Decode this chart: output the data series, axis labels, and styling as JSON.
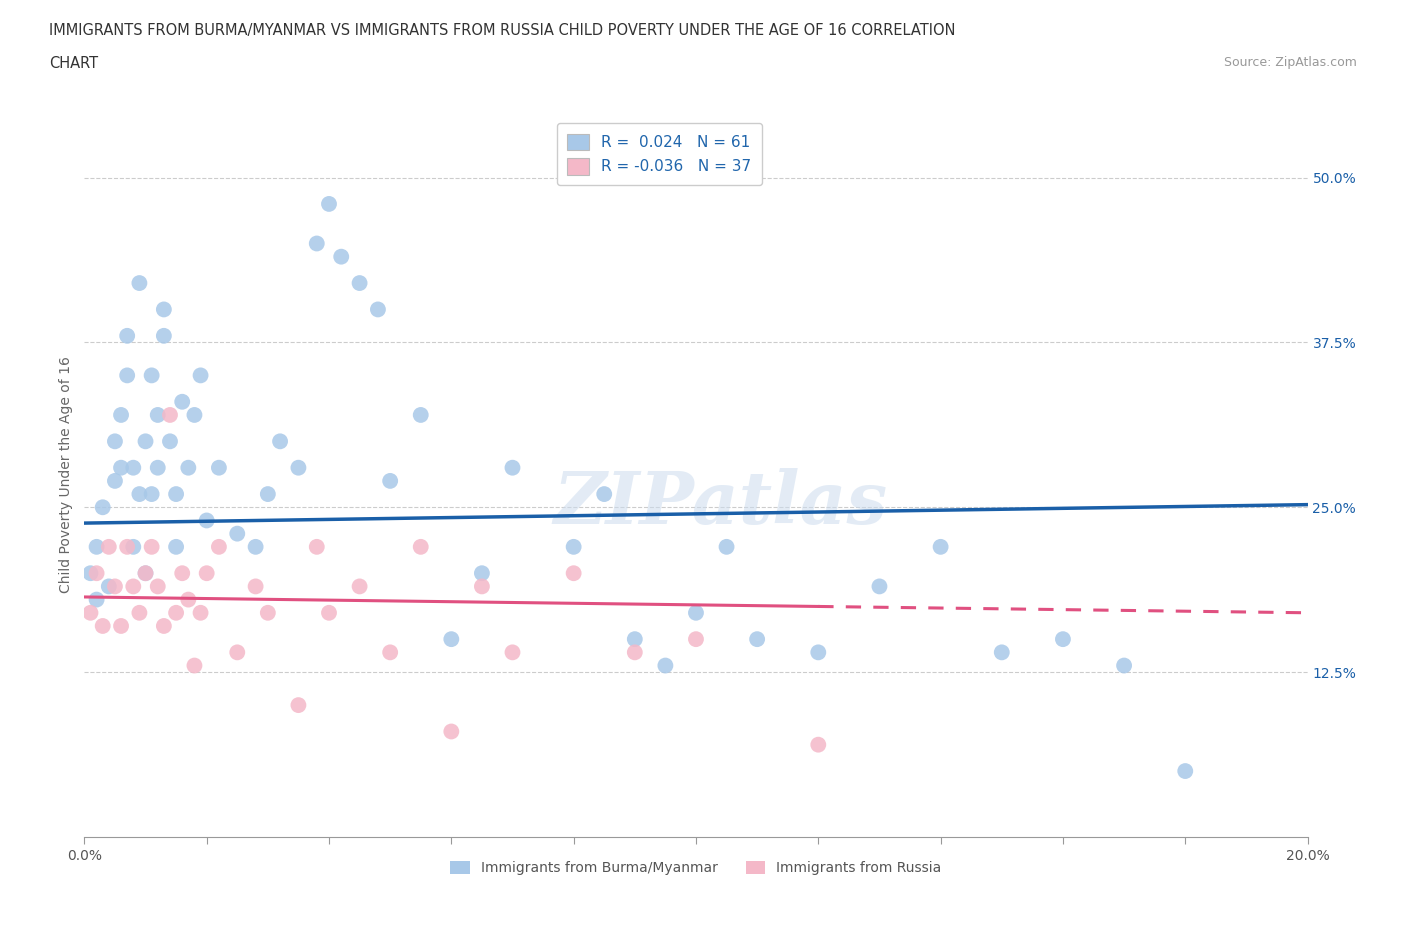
{
  "title_line1": "IMMIGRANTS FROM BURMA/MYANMAR VS IMMIGRANTS FROM RUSSIA CHILD POVERTY UNDER THE AGE OF 16 CORRELATION",
  "title_line2": "CHART",
  "source_text": "Source: ZipAtlas.com",
  "ylabel": "Child Poverty Under the Age of 16",
  "xlim": [
    0.0,
    0.2
  ],
  "ylim": [
    0.0,
    0.55
  ],
  "ytick_positions": [
    0.125,
    0.25,
    0.375,
    0.5
  ],
  "ytick_labels": [
    "12.5%",
    "25.0%",
    "37.5%",
    "50.0%"
  ],
  "blue_R": 0.024,
  "blue_N": 61,
  "pink_R": -0.036,
  "pink_N": 37,
  "blue_color": "#a8c8e8",
  "pink_color": "#f4b8c8",
  "blue_line_color": "#1a5fa8",
  "pink_line_color": "#e05080",
  "legend_label_blue": "Immigrants from Burma/Myanmar",
  "legend_label_pink": "Immigrants from Russia",
  "watermark": "ZIPatlas",
  "blue_x": [
    0.001,
    0.002,
    0.002,
    0.003,
    0.004,
    0.005,
    0.005,
    0.006,
    0.006,
    0.007,
    0.007,
    0.008,
    0.008,
    0.009,
    0.009,
    0.01,
    0.01,
    0.011,
    0.011,
    0.012,
    0.012,
    0.013,
    0.013,
    0.014,
    0.015,
    0.015,
    0.016,
    0.017,
    0.018,
    0.019,
    0.02,
    0.022,
    0.025,
    0.028,
    0.03,
    0.032,
    0.035,
    0.038,
    0.04,
    0.042,
    0.045,
    0.048,
    0.05,
    0.055,
    0.06,
    0.065,
    0.07,
    0.08,
    0.085,
    0.09,
    0.095,
    0.1,
    0.105,
    0.11,
    0.12,
    0.13,
    0.14,
    0.15,
    0.16,
    0.17,
    0.18
  ],
  "blue_y": [
    0.2,
    0.22,
    0.18,
    0.25,
    0.19,
    0.27,
    0.3,
    0.32,
    0.28,
    0.38,
    0.35,
    0.28,
    0.22,
    0.42,
    0.26,
    0.3,
    0.2,
    0.35,
    0.26,
    0.32,
    0.28,
    0.38,
    0.4,
    0.3,
    0.26,
    0.22,
    0.33,
    0.28,
    0.32,
    0.35,
    0.24,
    0.28,
    0.23,
    0.22,
    0.26,
    0.3,
    0.28,
    0.45,
    0.48,
    0.44,
    0.42,
    0.4,
    0.27,
    0.32,
    0.15,
    0.2,
    0.28,
    0.22,
    0.26,
    0.15,
    0.13,
    0.17,
    0.22,
    0.15,
    0.14,
    0.19,
    0.22,
    0.14,
    0.15,
    0.13,
    0.05
  ],
  "pink_x": [
    0.001,
    0.002,
    0.003,
    0.004,
    0.005,
    0.006,
    0.007,
    0.008,
    0.009,
    0.01,
    0.011,
    0.012,
    0.013,
    0.014,
    0.015,
    0.016,
    0.017,
    0.018,
    0.019,
    0.02,
    0.022,
    0.025,
    0.028,
    0.03,
    0.035,
    0.038,
    0.04,
    0.045,
    0.05,
    0.055,
    0.06,
    0.065,
    0.07,
    0.08,
    0.09,
    0.1,
    0.12
  ],
  "pink_y": [
    0.17,
    0.2,
    0.16,
    0.22,
    0.19,
    0.16,
    0.22,
    0.19,
    0.17,
    0.2,
    0.22,
    0.19,
    0.16,
    0.32,
    0.17,
    0.2,
    0.18,
    0.13,
    0.17,
    0.2,
    0.22,
    0.14,
    0.19,
    0.17,
    0.1,
    0.22,
    0.17,
    0.19,
    0.14,
    0.22,
    0.08,
    0.19,
    0.14,
    0.2,
    0.14,
    0.15,
    0.07
  ]
}
